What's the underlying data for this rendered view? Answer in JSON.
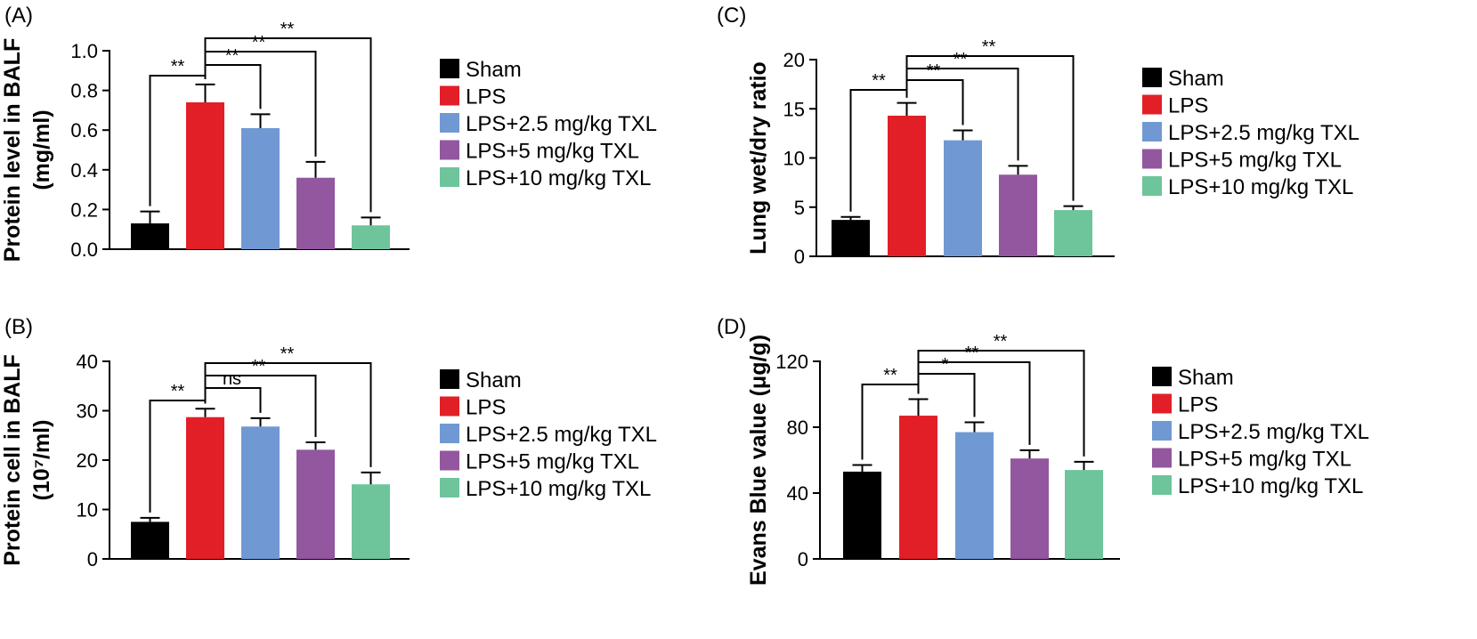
{
  "colors": {
    "Sham": "#000000",
    "LPS": "#e21f26",
    "LPS+2.5 mg/kg TXL": "#7099d3",
    "LPS+5 mg/kg TXL": "#92579f",
    "LPS+10 mg/kg TXL": "#6ec49b"
  },
  "chart_data": [
    {
      "panel": "(A)",
      "type": "bar",
      "ylabel_lines": [
        "Protein level in BALF",
        "(mg/ml)"
      ],
      "categories": [
        "Sham",
        "LPS",
        "LPS+2.5 mg/kg TXL",
        "LPS+5 mg/kg TXL",
        "LPS+10 mg/kg TXL"
      ],
      "values": [
        0.13,
        0.74,
        0.61,
        0.36,
        0.12
      ],
      "errors": [
        0.06,
        0.09,
        0.07,
        0.08,
        0.04
      ],
      "ylim": [
        0,
        1.0
      ],
      "yticks": [
        "0.0",
        "0.2",
        "0.4",
        "0.6",
        "0.8",
        "1.0"
      ],
      "legend": [
        "Sham",
        "LPS",
        "LPS+2.5 mg/kg TXL",
        "LPS+5 mg/kg TXL",
        "LPS+10 mg/kg TXL"
      ],
      "significance": [
        {
          "from": 0,
          "to": 1,
          "label": "**"
        },
        {
          "from": 1,
          "to": 2,
          "label": "**"
        },
        {
          "from": 1,
          "to": 3,
          "label": "**"
        },
        {
          "from": 1,
          "to": 4,
          "label": "**"
        }
      ]
    },
    {
      "panel": "(B)",
      "type": "bar",
      "ylabel_lines": [
        "Protein cell in BALF",
        "(10⁷/ml)"
      ],
      "categories": [
        "Sham",
        "LPS",
        "LPS+2.5 mg/kg TXL",
        "LPS+5 mg/kg TXL",
        "LPS+10 mg/kg TXL"
      ],
      "values": [
        7.5,
        28.7,
        26.8,
        22.1,
        15.1
      ],
      "errors": [
        0.8,
        1.7,
        1.7,
        1.5,
        2.4
      ],
      "ylim": [
        0,
        40
      ],
      "yticks": [
        "0",
        "10",
        "20",
        "30",
        "40"
      ],
      "legend": [
        "Sham",
        "LPS",
        "LPS+2.5 mg/kg TXL",
        "LPS+5 mg/kg TXL",
        "LPS+10 mg/kg TXL"
      ],
      "significance": [
        {
          "from": 0,
          "to": 1,
          "label": "**"
        },
        {
          "from": 1,
          "to": 2,
          "label": "ns"
        },
        {
          "from": 1,
          "to": 3,
          "label": "**"
        },
        {
          "from": 1,
          "to": 4,
          "label": "**"
        }
      ]
    },
    {
      "panel": "(C)",
      "type": "bar",
      "ylabel_lines": [
        "Lung wet/dry ratio"
      ],
      "categories": [
        "Sham",
        "LPS",
        "LPS+2.5 mg/kg TXL",
        "LPS+5 mg/kg TXL",
        "LPS+10 mg/kg TXL"
      ],
      "values": [
        3.7,
        14.3,
        11.8,
        8.3,
        4.7
      ],
      "errors": [
        0.3,
        1.3,
        1.0,
        0.9,
        0.4
      ],
      "ylim": [
        0,
        20
      ],
      "yticks": [
        "0",
        "5",
        "10",
        "15",
        "20"
      ],
      "legend": [
        "Sham",
        "LPS",
        "LPS+2.5 mg/kg TXL",
        "LPS+5 mg/kg TXL",
        "LPS+10 mg/kg TXL"
      ],
      "significance": [
        {
          "from": 0,
          "to": 1,
          "label": "**"
        },
        {
          "from": 1,
          "to": 2,
          "label": "**"
        },
        {
          "from": 1,
          "to": 3,
          "label": "**"
        },
        {
          "from": 1,
          "to": 4,
          "label": "**"
        }
      ]
    },
    {
      "panel": "(D)",
      "type": "bar",
      "ylabel_lines": [
        "Evans Blue value (μg/g)"
      ],
      "categories": [
        "Sham",
        "LPS",
        "LPS+2.5 mg/kg TXL",
        "LPS+5 mg/kg TXL",
        "LPS+10 mg/kg TXL"
      ],
      "values": [
        53,
        87,
        77,
        61,
        54
      ],
      "errors": [
        4,
        10,
        6,
        5,
        5
      ],
      "ylim": [
        0,
        120
      ],
      "yticks": [
        "0",
        "40",
        "80",
        "120"
      ],
      "legend": [
        "Sham",
        "LPS",
        "LPS+2.5 mg/kg TXL",
        "LPS+5 mg/kg TXL",
        "LPS+10 mg/kg TXL"
      ],
      "significance": [
        {
          "from": 0,
          "to": 1,
          "label": "**"
        },
        {
          "from": 1,
          "to": 2,
          "label": "*"
        },
        {
          "from": 1,
          "to": 3,
          "label": "**"
        },
        {
          "from": 1,
          "to": 4,
          "label": "**"
        }
      ]
    }
  ]
}
